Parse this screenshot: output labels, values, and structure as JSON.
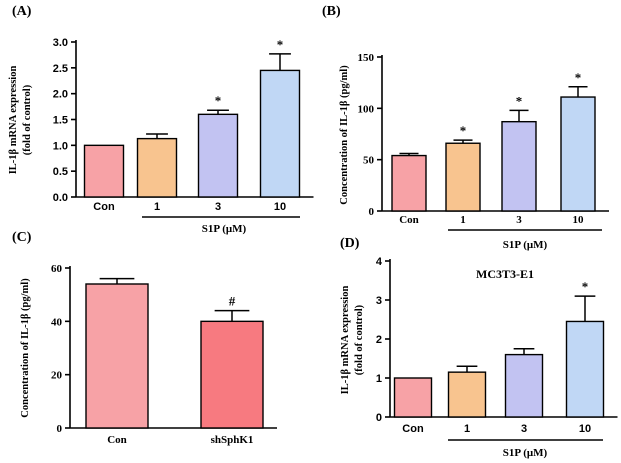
{
  "chart_data": [
    {
      "panel": "(A)",
      "type": "bar",
      "ylabel_lines": [
        "IL-1β mRNA expression",
        "(fold of control)"
      ],
      "ylim": [
        0,
        3.0
      ],
      "yticks": [
        "0.0",
        "0.5",
        "1.0",
        "1.5",
        "2.0",
        "2.5",
        "3.0"
      ],
      "categories": [
        "Con",
        "1",
        "3",
        "10"
      ],
      "values": [
        1.0,
        1.13,
        1.6,
        2.45
      ],
      "errors": [
        0.0,
        0.09,
        0.08,
        0.32
      ],
      "colors": [
        "#f7a2a6",
        "#f8c48f",
        "#c2c3f2",
        "#c0d7f5"
      ],
      "significance": [
        "",
        "",
        "*",
        "*"
      ],
      "group_label": "S1P (μM)"
    },
    {
      "panel": "(B)",
      "type": "bar",
      "ylabel_lines": [
        "Concentration of IL-1β (pg/ml)"
      ],
      "ylim": [
        0,
        150
      ],
      "yticks": [
        "0",
        "50",
        "100",
        "150"
      ],
      "categories": [
        "Con",
        "1",
        "3",
        "10"
      ],
      "values": [
        54,
        66,
        87,
        111
      ],
      "errors": [
        2,
        3,
        11,
        10
      ],
      "colors": [
        "#f7a2a6",
        "#f8c48f",
        "#c2c3f2",
        "#c0d7f5"
      ],
      "significance": [
        "",
        "*",
        "*",
        "*"
      ],
      "group_label": "S1P (μM)"
    },
    {
      "panel": "(C)",
      "type": "bar",
      "ylabel_lines": [
        "Concentration of IL-1β (pg/ml)"
      ],
      "ylim": [
        0,
        60
      ],
      "yticks": [
        "0",
        "20",
        "40",
        "60"
      ],
      "categories": [
        "Con",
        "shSphK1"
      ],
      "values": [
        54,
        40
      ],
      "errors": [
        2,
        4
      ],
      "colors": [
        "#f7a2a6",
        "#f77a80"
      ],
      "significance": [
        "",
        "#"
      ],
      "group_label": ""
    },
    {
      "panel": "(D)",
      "type": "bar",
      "title": "MC3T3-E1",
      "ylabel_lines": [
        "IL-1β mRNA expression",
        "(fold of control)"
      ],
      "ylim": [
        0,
        4
      ],
      "yticks": [
        "0",
        "1",
        "2",
        "3",
        "4"
      ],
      "categories": [
        "Con",
        "1",
        "3",
        "10"
      ],
      "values": [
        1.0,
        1.15,
        1.6,
        2.45
      ],
      "errors": [
        0.0,
        0.15,
        0.15,
        0.65
      ],
      "colors": [
        "#f7a2a6",
        "#f8c48f",
        "#c2c3f2",
        "#c0d7f5"
      ],
      "significance": [
        "",
        "",
        "",
        "*"
      ],
      "group_label": "S1P (μM)"
    }
  ]
}
